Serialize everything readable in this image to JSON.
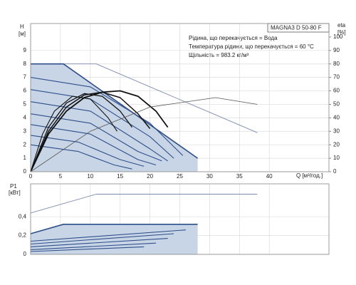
{
  "chart_data": [
    {
      "type": "line",
      "title": "MAGNA3 D 50-80 F",
      "annotations": [
        "Рідина, що перекачується = Вода",
        "Температура рідини, що перекачується = 60 °C",
        "Щільність = 983.2 кг/м³"
      ],
      "y_label": "H",
      "y_unit": "[м]",
      "y2_label": "eta",
      "y2_unit": "[%]",
      "x_label": "Q [м³/год.]",
      "xlim": [
        0,
        50
      ],
      "xticks": [
        0,
        5,
        10,
        15,
        20,
        25,
        30,
        35,
        40
      ],
      "ylim": [
        0,
        11
      ],
      "yticks": [
        0,
        1,
        2,
        3,
        4,
        5,
        6,
        7,
        8,
        9
      ],
      "y2lim": [
        0,
        110
      ],
      "y2ticks": [
        0,
        10,
        20,
        30,
        40,
        50,
        60,
        70,
        80,
        90,
        100
      ],
      "grid": true,
      "series": [
        {
          "color": "#7d8ab0",
          "width": 0.9,
          "x": [
            0,
            11,
            38
          ],
          "values": [
            8,
            8,
            2.9
          ]
        },
        {
          "color": "#2f4f8a",
          "width": 1.6,
          "fill": "#c8d5e6",
          "x": [
            0,
            5.5,
            28
          ],
          "values": [
            8,
            8,
            1.0
          ]
        },
        {
          "color": "#2f4f8a",
          "width": 1.1,
          "x": [
            0,
            10,
            20,
            25.5
          ],
          "values": [
            7,
            6.3,
            3.6,
            1.2
          ]
        },
        {
          "color": "#2f4f8a",
          "width": 1.1,
          "x": [
            0,
            10,
            20,
            24
          ],
          "values": [
            6.1,
            5.4,
            2.6,
            1.0
          ]
        },
        {
          "color": "#2f4f8a",
          "width": 1.1,
          "x": [
            0,
            10,
            20,
            23
          ],
          "values": [
            5.2,
            4.5,
            1.7,
            0.8
          ]
        },
        {
          "color": "#2f4f8a",
          "width": 1.1,
          "x": [
            0,
            10,
            18,
            22
          ],
          "values": [
            4.3,
            3.6,
            1.5,
            0.8
          ]
        },
        {
          "color": "#2f4f8a",
          "width": 1.1,
          "x": [
            0,
            10,
            18,
            21
          ],
          "values": [
            3.5,
            2.8,
            0.9,
            0.5
          ]
        },
        {
          "color": "#2f4f8a",
          "width": 1.1,
          "x": [
            0,
            8,
            15,
            19
          ],
          "values": [
            2.7,
            2.2,
            0.9,
            0.4
          ]
        },
        {
          "color": "#2f4f8a",
          "width": 1.1,
          "x": [
            0,
            8,
            14,
            17
          ],
          "values": [
            2.0,
            1.5,
            0.5,
            0.2
          ]
        },
        {
          "color": "#111111",
          "width": 1.8,
          "axis": "y2",
          "x": [
            0,
            3,
            6,
            9,
            12,
            15,
            18,
            21,
            23
          ],
          "values": [
            0,
            28,
            45,
            55,
            59,
            60,
            56,
            45,
            33
          ]
        },
        {
          "color": "#111111",
          "width": 1.5,
          "axis": "y2",
          "x": [
            0,
            3,
            6,
            9,
            12,
            15,
            18,
            20
          ],
          "values": [
            0,
            30,
            48,
            57,
            59,
            55,
            43,
            32
          ]
        },
        {
          "color": "#111111",
          "width": 1.3,
          "axis": "y2",
          "x": [
            0,
            3,
            6,
            9,
            12,
            15,
            17
          ],
          "values": [
            0,
            33,
            51,
            58,
            56,
            45,
            33
          ]
        },
        {
          "color": "#111111",
          "width": 1.1,
          "axis": "y2",
          "x": [
            0,
            2,
            4,
            7,
            10,
            13,
            14.5
          ],
          "values": [
            0,
            28,
            45,
            56,
            54,
            40,
            30
          ]
        },
        {
          "color": "#555555",
          "width": 0.8,
          "axis": "y2",
          "x": [
            0,
            10,
            20,
            31,
            38
          ],
          "values": [
            0,
            30,
            48,
            55,
            50
          ]
        }
      ]
    },
    {
      "type": "line",
      "y_label": "P1",
      "y_unit": "[кВт]",
      "xlim": [
        0,
        50
      ],
      "ylim": [
        0,
        0.75
      ],
      "yticks": [
        0,
        {
          "value": 0.2,
          "label": "0,2"
        },
        {
          "value": 0.4,
          "label": "0,4"
        }
      ],
      "grid": true,
      "series": [
        {
          "color": "#7d8ab0",
          "width": 0.9,
          "x": [
            0,
            11,
            38
          ],
          "values": [
            0.44,
            0.64,
            0.64
          ]
        },
        {
          "color": "#2f4f8a",
          "width": 1.6,
          "fill": "#c8d5e6",
          "x": [
            0,
            5.5,
            28
          ],
          "values": [
            0.22,
            0.32,
            0.32
          ]
        },
        {
          "color": "#2f4f8a",
          "width": 1.1,
          "x": [
            0,
            26
          ],
          "values": [
            0.14,
            0.26
          ]
        },
        {
          "color": "#2f4f8a",
          "width": 1.1,
          "x": [
            0,
            24
          ],
          "values": [
            0.11,
            0.22
          ]
        },
        {
          "color": "#2f4f8a",
          "width": 1.1,
          "x": [
            0,
            23
          ],
          "values": [
            0.08,
            0.17
          ]
        },
        {
          "color": "#2f4f8a",
          "width": 1.1,
          "x": [
            0,
            21
          ],
          "values": [
            0.05,
            0.12
          ]
        },
        {
          "color": "#2f4f8a",
          "width": 1.1,
          "x": [
            0,
            19
          ],
          "values": [
            0.03,
            0.08
          ]
        }
      ]
    }
  ]
}
